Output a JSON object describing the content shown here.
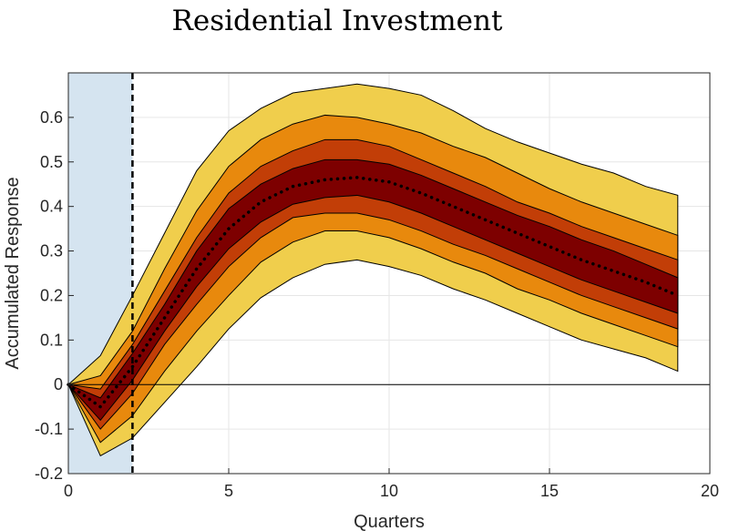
{
  "chart_data": {
    "type": "area",
    "title": "Residential Investment",
    "xlabel": "Quarters",
    "ylabel": "Accumulated Response",
    "xlim": [
      0,
      20
    ],
    "ylim": [
      -0.2,
      0.7
    ],
    "xticks": [
      0,
      5,
      10,
      15,
      20
    ],
    "yticks": [
      -0.2,
      -0.1,
      0,
      0.1,
      0.2,
      0.3,
      0.4,
      0.5,
      0.6
    ],
    "grid": true,
    "shaded_region": {
      "x": [
        0,
        2
      ],
      "color": "#d5e4f0"
    },
    "vline": {
      "x": 2,
      "style": "dashed"
    },
    "zero_line": true,
    "x": [
      0,
      1,
      2,
      3,
      4,
      5,
      6,
      7,
      8,
      9,
      10,
      11,
      12,
      13,
      14,
      15,
      16,
      17,
      18,
      19
    ],
    "median": [
      0,
      -0.05,
      0.04,
      0.15,
      0.26,
      0.35,
      0.41,
      0.445,
      0.46,
      0.465,
      0.455,
      0.43,
      0.4,
      0.37,
      0.34,
      0.31,
      0.28,
      0.255,
      0.23,
      0.2
    ],
    "bands": [
      {
        "color": "#f0ce4c",
        "lower": [
          0,
          -0.16,
          -0.12,
          -0.04,
          0.04,
          0.125,
          0.195,
          0.24,
          0.27,
          0.28,
          0.265,
          0.245,
          0.215,
          0.19,
          0.16,
          0.13,
          0.1,
          0.08,
          0.06,
          0.03
        ],
        "upper": [
          0,
          0.065,
          0.2,
          0.34,
          0.48,
          0.57,
          0.62,
          0.655,
          0.665,
          0.675,
          0.665,
          0.65,
          0.615,
          0.575,
          0.545,
          0.52,
          0.495,
          0.475,
          0.445,
          0.425
        ]
      },
      {
        "color": "#e8890d",
        "lower": [
          0,
          -0.13,
          -0.07,
          0.03,
          0.12,
          0.2,
          0.275,
          0.32,
          0.345,
          0.345,
          0.33,
          0.305,
          0.275,
          0.25,
          0.215,
          0.19,
          0.16,
          0.135,
          0.11,
          0.085
        ],
        "upper": [
          0,
          0.02,
          0.12,
          0.26,
          0.39,
          0.49,
          0.55,
          0.585,
          0.605,
          0.6,
          0.585,
          0.565,
          0.535,
          0.51,
          0.475,
          0.44,
          0.41,
          0.385,
          0.36,
          0.335
        ]
      },
      {
        "color": "#c23e07",
        "lower": [
          0,
          -0.1,
          -0.02,
          0.09,
          0.18,
          0.265,
          0.33,
          0.375,
          0.385,
          0.385,
          0.37,
          0.345,
          0.315,
          0.29,
          0.26,
          0.23,
          0.2,
          0.175,
          0.15,
          0.125
        ],
        "upper": [
          0,
          -0.01,
          0.09,
          0.21,
          0.33,
          0.43,
          0.49,
          0.525,
          0.55,
          0.55,
          0.535,
          0.505,
          0.475,
          0.445,
          0.41,
          0.385,
          0.355,
          0.33,
          0.305,
          0.28
        ]
      },
      {
        "color": "#7d0000",
        "lower": [
          0,
          -0.08,
          0.01,
          0.12,
          0.22,
          0.305,
          0.365,
          0.405,
          0.42,
          0.425,
          0.41,
          0.385,
          0.355,
          0.325,
          0.295,
          0.265,
          0.235,
          0.21,
          0.185,
          0.16
        ],
        "upper": [
          0,
          -0.03,
          0.07,
          0.18,
          0.3,
          0.395,
          0.45,
          0.485,
          0.505,
          0.505,
          0.495,
          0.47,
          0.44,
          0.41,
          0.38,
          0.355,
          0.325,
          0.3,
          0.27,
          0.24
        ]
      }
    ]
  }
}
